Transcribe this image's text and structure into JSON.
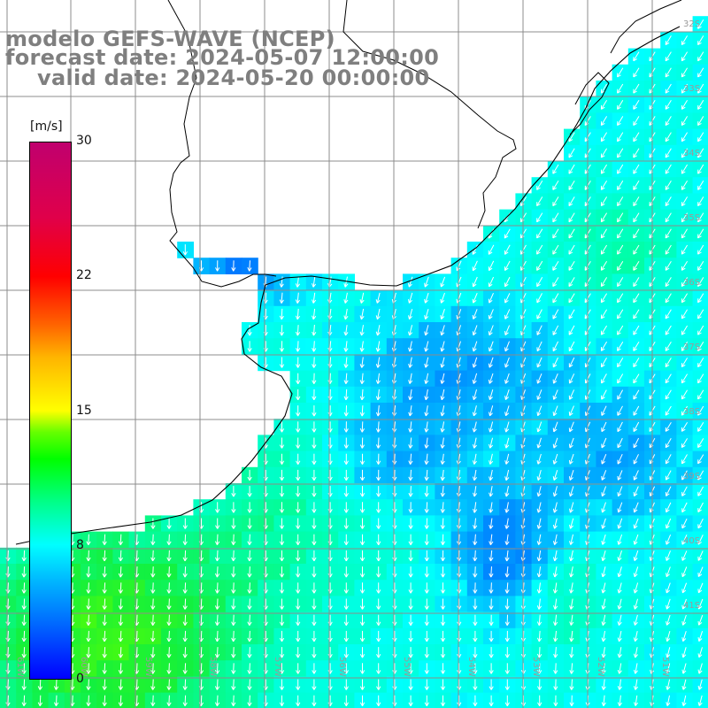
{
  "title": {
    "line1": "modelo GEFS-WAVE (NCEP)",
    "line2": "forecast date: 2024-05-07 12:00:00",
    "line3": "valid date: 2024-05-20 00:00:00"
  },
  "colorbar": {
    "unit": "[m/s]",
    "ticks": [
      "30",
      "22",
      "15",
      "8",
      "0"
    ],
    "range": [
      0,
      30
    ],
    "colors": [
      "#0000ff",
      "#00b4ff",
      "#00ffff",
      "#00ff00",
      "#ffff00",
      "#ff6400",
      "#ff0000",
      "#c0006e"
    ]
  },
  "map": {
    "lat_labels": [
      "32S",
      "33S",
      "34S",
      "35S",
      "36S",
      "37S",
      "38S",
      "39S",
      "40S",
      "41S"
    ],
    "lon_labels": [
      "61W",
      "60W",
      "59W",
      "58W",
      "57W",
      "56W",
      "55W",
      "54W",
      "53W",
      "52W",
      "51W"
    ],
    "field": "wind speed (m/s) with direction arrows",
    "prevailing_direction": "from north-northeast",
    "colors": {
      "land": "#ffffff",
      "coast": "#000000",
      "grid": "#8c8c8c",
      "sea_low": "#1e6eff",
      "sea_mid": "#00e6f0",
      "sea_high": "#2ce83a",
      "arrow": "#ffffff"
    }
  }
}
